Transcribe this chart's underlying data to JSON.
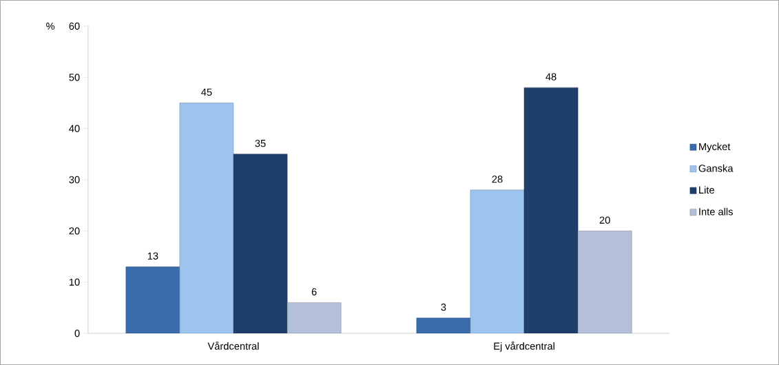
{
  "chart_data": {
    "type": "bar",
    "ylabel": "%",
    "categories": [
      "Vårdcentral",
      "Ej vårdcentral"
    ],
    "series": [
      {
        "name": "Mycket",
        "color": "#3a6bab",
        "values": [
          13,
          3
        ]
      },
      {
        "name": "Ganska",
        "color": "#9dc3ef",
        "values": [
          45,
          28
        ]
      },
      {
        "name": "Lite",
        "color": "#1f3f6b",
        "values": [
          35,
          48
        ]
      },
      {
        "name": "Inte alls",
        "color": "#b4bfd9",
        "values": [
          6,
          20
        ]
      }
    ],
    "ylim": [
      0,
      60
    ],
    "yticks": [
      0,
      10,
      20,
      30,
      40,
      50,
      60
    ],
    "data_labels": true,
    "legend": "right",
    "grid": false
  }
}
